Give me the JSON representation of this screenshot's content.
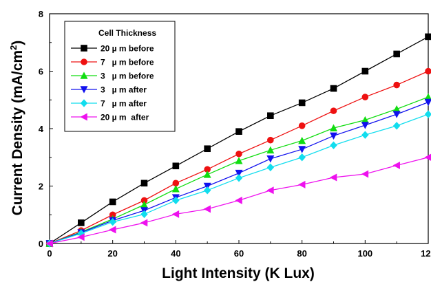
{
  "chart_data": {
    "type": "line",
    "title": "",
    "xlabel": "Light Intensity (K Lux)",
    "ylabel_main": "Current Density (mA/cm",
    "ylabel_sup": "2",
    "ylabel_close": ")",
    "xlim": [
      0,
      120
    ],
    "ylim": [
      0,
      8
    ],
    "xticks": [
      0,
      20,
      40,
      60,
      80,
      100,
      120
    ],
    "yticks": [
      0,
      2,
      4,
      6,
      8
    ],
    "x": [
      0,
      10,
      20,
      30,
      40,
      50,
      60,
      70,
      80,
      90,
      100,
      110,
      120
    ],
    "grid": false,
    "legend": {
      "title": "Cell Thickness",
      "placement": "top-left"
    },
    "series": [
      {
        "name": "20 µ m before",
        "color": "#000000",
        "marker": "square",
        "values": [
          0,
          0.72,
          1.45,
          2.1,
          2.7,
          3.3,
          3.9,
          4.45,
          4.9,
          5.4,
          6.0,
          6.6,
          7.2
        ]
      },
      {
        "name": "7   µ m before",
        "color": "#ee1111",
        "marker": "circle",
        "values": [
          0,
          0.45,
          1.0,
          1.5,
          2.1,
          2.58,
          3.12,
          3.6,
          4.1,
          4.62,
          5.1,
          5.52,
          6.0
        ]
      },
      {
        "name": "3   µ m before",
        "color": "#11dd11",
        "marker": "triangle-up",
        "values": [
          0,
          0.4,
          0.85,
          1.35,
          1.9,
          2.4,
          2.88,
          3.25,
          3.58,
          4.02,
          4.3,
          4.68,
          5.1
        ]
      },
      {
        "name": "3   µ m after",
        "color": "#1111ee",
        "marker": "triangle-down",
        "values": [
          0,
          0.38,
          0.8,
          1.15,
          1.6,
          2.0,
          2.45,
          2.95,
          3.28,
          3.75,
          4.12,
          4.5,
          4.92
        ]
      },
      {
        "name": "7   µ m after",
        "color": "#11ddee",
        "marker": "diamond",
        "values": [
          0,
          0.35,
          0.75,
          1.02,
          1.5,
          1.85,
          2.28,
          2.65,
          3.0,
          3.42,
          3.78,
          4.1,
          4.5
        ]
      },
      {
        "name": "20 µ m  after",
        "color": "#ee11ee",
        "marker": "triangle-left",
        "values": [
          0,
          0.22,
          0.48,
          0.72,
          1.02,
          1.2,
          1.5,
          1.85,
          2.05,
          2.3,
          2.42,
          2.72,
          3.0
        ]
      }
    ]
  }
}
